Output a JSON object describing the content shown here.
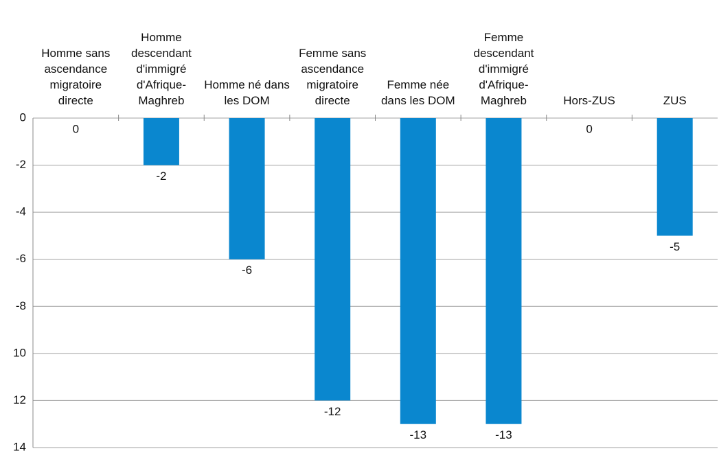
{
  "chart_data": {
    "type": "bar",
    "categories": [
      "Homme sans ascendance migratoire directe",
      "Homme descendant d'immigré d'Afrique-Maghreb",
      "Homme né dans les DOM",
      "Femme sans ascendance migratoire directe",
      "Femme née dans les DOM",
      "Femme descendant d'immigré d'Afrique-Maghreb",
      "Hors-ZUS",
      "ZUS"
    ],
    "values": [
      0,
      -2,
      -6,
      -12,
      -13,
      -13,
      0,
      -5
    ],
    "color": "#0a87cf",
    "ylim": [
      0,
      -14
    ],
    "yticks": [
      0,
      -2,
      -4,
      -6,
      -8,
      {
        "value": -10,
        "label": "10"
      },
      {
        "value": -12,
        "label": "12"
      },
      {
        "value": -14,
        "label": "14"
      }
    ],
    "grid": true
  }
}
